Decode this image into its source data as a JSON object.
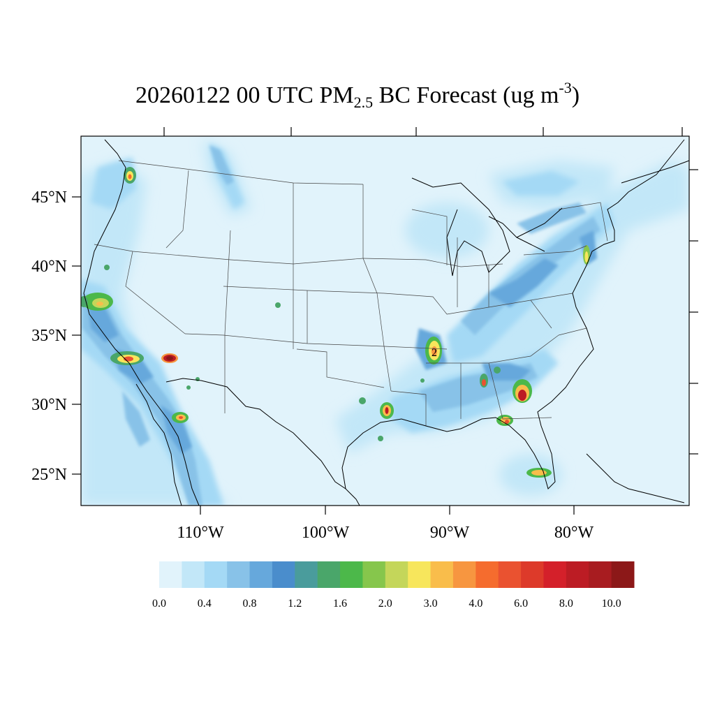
{
  "title": {
    "prefix": "20260122 00 UTC PM",
    "subscript": "2.5",
    "middle": " BC Forecast (ug m",
    "superscript": "-3",
    "suffix": ")"
  },
  "map": {
    "latitude_labels": [
      "45°N",
      "40°N",
      "35°N",
      "30°N",
      "25°N"
    ],
    "longitude_labels": [
      "110°W",
      "100°W",
      "90°W",
      "80°W"
    ],
    "contour_label": "2"
  },
  "colorbar": {
    "colors": [
      "#e1f3fb",
      "#c2e7f8",
      "#a4d9f5",
      "#88c2e8",
      "#66a8dc",
      "#4a8dcc",
      "#4a9c9c",
      "#4aa66a",
      "#4cb84a",
      "#86c64c",
      "#c4d65a",
      "#f7e65c",
      "#f9bd4b",
      "#f79640",
      "#f56c2e",
      "#ea5230",
      "#dd3a2a",
      "#d4202a",
      "#bc1c24",
      "#a81c20",
      "#8c1818"
    ],
    "tick_labels": [
      "0.0",
      "0.4",
      "0.8",
      "1.2",
      "1.6",
      "2.0",
      "3.0",
      "4.0",
      "6.0",
      "8.0",
      "10.0"
    ]
  }
}
